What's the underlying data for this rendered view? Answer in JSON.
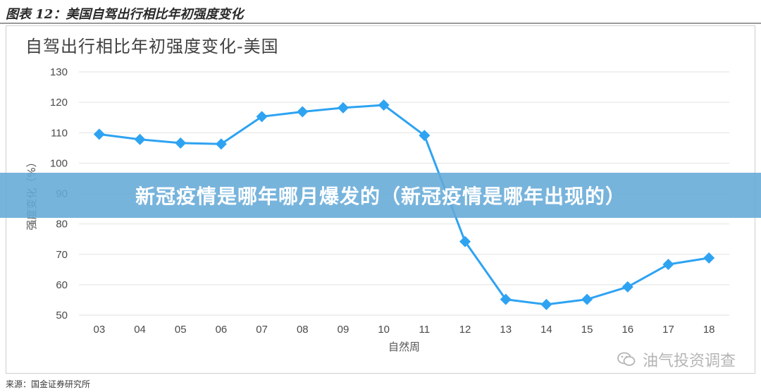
{
  "figure_label": "图表 12：美国自驾出行相比年初强度变化",
  "source_note": "来源：国金证券研究所",
  "overlay_title": "新冠疫情是哪年哪月爆发的（新冠疫情是哪年出现的）",
  "watermark_text": "油气投资调查",
  "colors": {
    "line": "#2ea3f2",
    "marker": "#2ea3f2",
    "grid": "#e2e2e2",
    "banner": "#64aad7"
  },
  "chart_data": {
    "type": "line",
    "title": "自驾出行相比年初强度变化-美国",
    "xlabel": "自然周",
    "ylabel": "强度变化（%）",
    "categories": [
      "03",
      "04",
      "05",
      "06",
      "07",
      "08",
      "09",
      "10",
      "11",
      "12",
      "13",
      "14",
      "15",
      "16",
      "17",
      "18"
    ],
    "series": [
      {
        "values": [
          109.5,
          107.8,
          106.6,
          106.3,
          115.3,
          116.9,
          118.2,
          119.1,
          109.1,
          74.2,
          55.2,
          53.5,
          55.2,
          59.3,
          66.7,
          68.8
        ]
      }
    ],
    "ylim": [
      50,
      130
    ],
    "yticks": [
      50,
      60,
      70,
      80,
      90,
      100,
      110,
      120,
      130
    ],
    "grid": true,
    "marker": "diamond"
  }
}
